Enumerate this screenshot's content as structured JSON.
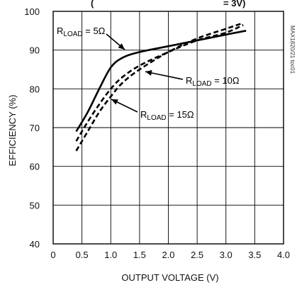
{
  "chart_data": {
    "type": "line",
    "title_fragment": "(",
    "title_fragment_right": "= 3V)",
    "xlabel": "OUTPUT VOLTAGE (V)",
    "ylabel": "EFFICIENCY (%)",
    "xlim": [
      0,
      4.0
    ],
    "ylim": [
      40,
      100
    ],
    "x_ticks": [
      "0",
      "0.5",
      "1.0",
      "1.5",
      "2.0",
      "2.5",
      "3.0",
      "3.5",
      "4.0"
    ],
    "y_ticks": [
      "40",
      "50",
      "60",
      "70",
      "80",
      "90",
      "100"
    ],
    "grid": true,
    "side_code": "MAX1820/21 toc01",
    "series": [
      {
        "name": "RLOAD = 5Ω",
        "label_main": "R",
        "label_sub": "LOAD",
        "label_value": " = 5Ω",
        "style": "solid",
        "points": [
          [
            0.4,
            69
          ],
          [
            0.6,
            74
          ],
          [
            0.8,
            80
          ],
          [
            1.0,
            85.5
          ],
          [
            1.2,
            88
          ],
          [
            1.5,
            89.5
          ],
          [
            2.0,
            91
          ],
          [
            2.5,
            92.5
          ],
          [
            3.0,
            94
          ],
          [
            3.35,
            95
          ]
        ]
      },
      {
        "name": "RLOAD = 10Ω",
        "label_main": "R",
        "label_sub": "LOAD",
        "label_value": " = 10Ω",
        "style": "dashed",
        "points": [
          [
            0.4,
            66.5
          ],
          [
            0.6,
            71.5
          ],
          [
            0.8,
            76
          ],
          [
            1.0,
            80
          ],
          [
            1.2,
            83
          ],
          [
            1.5,
            86
          ],
          [
            2.0,
            89.5
          ],
          [
            2.5,
            92.5
          ],
          [
            3.0,
            94.5
          ],
          [
            3.3,
            96.5
          ]
        ]
      },
      {
        "name": "RLOAD = 15Ω",
        "label_main": "R",
        "label_sub": "LOAD",
        "label_value": " = 15Ω",
        "style": "dashed",
        "points": [
          [
            0.4,
            64
          ],
          [
            0.6,
            69
          ],
          [
            0.8,
            74
          ],
          [
            1.0,
            78
          ],
          [
            1.2,
            81.5
          ],
          [
            1.5,
            85
          ],
          [
            2.0,
            89.5
          ],
          [
            2.5,
            93
          ],
          [
            3.0,
            95.5
          ],
          [
            3.3,
            97
          ]
        ]
      }
    ]
  }
}
